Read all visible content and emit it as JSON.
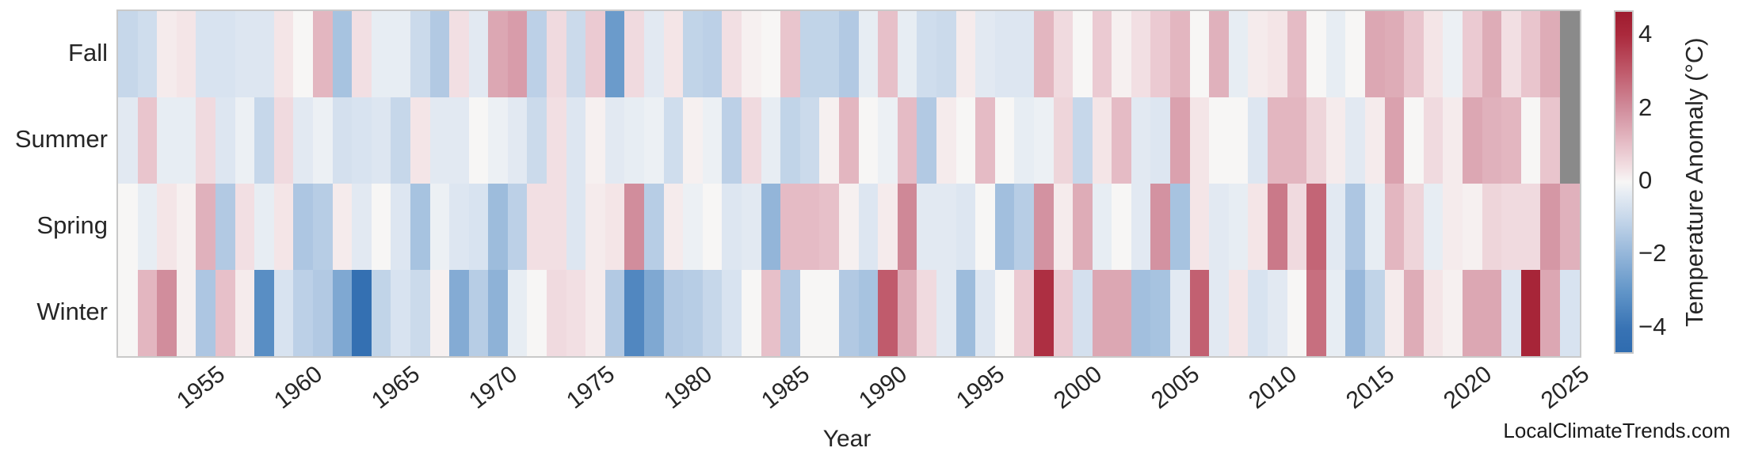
{
  "watermark": {
    "text": "LocalClimateTrends.com"
  },
  "chart_data": {
    "type": "heatmap",
    "xlabel": "Year",
    "x_start": 1950,
    "x_end": 2024,
    "x_ticks": [
      1955,
      1960,
      1965,
      1970,
      1975,
      1980,
      1985,
      1990,
      1995,
      2000,
      2005,
      2010,
      2015,
      2020,
      2025
    ],
    "rows": [
      "Fall",
      "Summer",
      "Spring",
      "Winter"
    ],
    "legend_position": "right",
    "grid": false,
    "missing_color": "#8a8a8a",
    "colorbar": {
      "label": "Temperature Anomaly (°C)",
      "ticks": [
        4,
        2,
        0,
        -2,
        -4
      ],
      "vmin": -4.65,
      "vmax": 4.65
    },
    "colormap_stops": [
      [
        -4.65,
        "#2f6cb0"
      ],
      [
        -4.0,
        "#3873b4"
      ],
      [
        -3.0,
        "#6195c8"
      ],
      [
        -2.0,
        "#93b5d9"
      ],
      [
        -1.0,
        "#c6d7ea"
      ],
      [
        -0.35,
        "#e4ebf3"
      ],
      [
        0.0,
        "#f7f6f5"
      ],
      [
        0.35,
        "#f3e2e5"
      ],
      [
        1.0,
        "#e7c0c9"
      ],
      [
        2.0,
        "#d18d9c"
      ],
      [
        3.0,
        "#c05b6c"
      ],
      [
        4.0,
        "#ab2a3d"
      ],
      [
        4.65,
        "#9e1b2e"
      ]
    ],
    "series": [
      {
        "name": "Fall",
        "values": [
          -1.0,
          -0.8,
          0.2,
          0.3,
          -0.6,
          -0.6,
          -0.5,
          -0.5,
          0.3,
          0.0,
          1.2,
          -1.6,
          0.4,
          -0.3,
          -0.3,
          -0.9,
          -1.4,
          0.4,
          -0.4,
          1.5,
          1.7,
          -1.2,
          0.5,
          -0.9,
          0.8,
          -2.8,
          0.5,
          -0.4,
          0.3,
          -1.1,
          -1.2,
          0.4,
          0.1,
          0.0,
          0.9,
          -1.1,
          -1.1,
          -1.4,
          -0.3,
          1.0,
          -0.3,
          -0.8,
          -0.9,
          0.2,
          -0.4,
          -0.5,
          -0.5,
          1.2,
          0.5,
          0.0,
          0.8,
          0.1,
          0.4,
          0.8,
          1.2,
          0.0,
          1.3,
          -0.3,
          0.2,
          0.3,
          1.1,
          0.0,
          -0.3,
          0.0,
          1.5,
          1.4,
          0.9,
          0.3,
          -0.2,
          0.8,
          1.4,
          0.4,
          0.9,
          1.4,
          null
        ]
      },
      {
        "name": "Summer",
        "values": [
          -0.4,
          0.9,
          -0.3,
          -0.3,
          0.5,
          -0.5,
          -0.2,
          -1.0,
          0.5,
          -0.4,
          -0.2,
          -0.7,
          -0.6,
          -0.5,
          -1.0,
          0.3,
          -0.4,
          -0.4,
          0.0,
          -0.2,
          -0.4,
          -0.9,
          0.4,
          -0.5,
          0.1,
          -0.4,
          -0.3,
          -0.2,
          -0.8,
          0.1,
          -0.2,
          -1.2,
          0.5,
          -0.3,
          -1.1,
          -0.9,
          0.1,
          1.2,
          0.0,
          -0.2,
          1.1,
          -1.4,
          0.2,
          0.0,
          1.1,
          0.0,
          -0.3,
          -0.2,
          0.6,
          -1.0,
          0.3,
          1.1,
          -0.4,
          -0.5,
          1.6,
          0.3,
          0.0,
          0.0,
          -0.5,
          1.2,
          1.2,
          0.6,
          0.2,
          -0.4,
          0.2,
          1.6,
          0.0,
          0.5,
          0.2,
          1.5,
          1.3,
          1.2,
          0.0,
          0.9,
          null
        ]
      },
      {
        "name": "Spring",
        "values": [
          0.0,
          -0.3,
          0.3,
          0.1,
          1.3,
          -1.4,
          0.4,
          -0.3,
          0.3,
          -1.5,
          -1.3,
          0.2,
          -0.4,
          0.0,
          -0.5,
          -1.6,
          -0.2,
          -0.5,
          -0.6,
          -1.8,
          -1.2,
          0.4,
          0.4,
          -0.5,
          0.2,
          0.3,
          2.0,
          -1.3,
          0.2,
          -0.2,
          0.0,
          -0.5,
          -0.4,
          -2.0,
          1.1,
          1.1,
          1.0,
          0.1,
          -0.5,
          0.2,
          2.1,
          -0.4,
          -0.4,
          -0.5,
          0.0,
          -1.7,
          -1.3,
          1.9,
          0.2,
          1.4,
          -0.3,
          0.0,
          -0.4,
          1.9,
          -1.6,
          0.3,
          -0.4,
          -0.3,
          0.3,
          2.4,
          0.5,
          2.8,
          -0.4,
          -1.5,
          -0.3,
          1.2,
          0.6,
          -0.3,
          0.2,
          0.1,
          0.6,
          0.5,
          0.5,
          1.8,
          1.3
        ]
      },
      {
        "name": "Winter",
        "values": [
          0.0,
          1.2,
          2.0,
          0.1,
          -1.5,
          1.0,
          0.2,
          -3.2,
          -0.6,
          -1.2,
          -1.4,
          -2.4,
          -4.3,
          -1.1,
          -0.6,
          -0.9,
          0.1,
          -2.3,
          -1.3,
          -2.1,
          -0.3,
          0.0,
          0.5,
          0.4,
          0.2,
          -1.4,
          -3.4,
          -2.4,
          -1.4,
          -1.3,
          -1.0,
          -0.6,
          0.0,
          1.0,
          -1.4,
          0.0,
          0.0,
          -1.4,
          -1.6,
          3.0,
          1.4,
          0.5,
          -0.4,
          -1.8,
          -0.5,
          0.0,
          0.8,
          3.9,
          0.8,
          -0.7,
          1.5,
          1.5,
          -1.7,
          -1.6,
          -0.4,
          2.9,
          -0.4,
          0.3,
          -0.6,
          -0.4,
          0.0,
          2.6,
          -0.3,
          -1.9,
          -1.1,
          0.2,
          1.4,
          0.3,
          0.1,
          1.5,
          1.5,
          -0.5,
          4.2,
          1.5,
          -0.6
        ]
      }
    ]
  }
}
